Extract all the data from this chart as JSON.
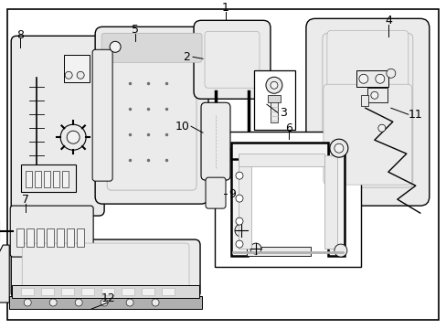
{
  "bg_color": "#ffffff",
  "line_color": "#000000",
  "text_color": "#000000",
  "fig_width": 4.89,
  "fig_height": 3.6,
  "dpi": 100,
  "gray_fill": "#d8d8d8",
  "mid_gray": "#b0b0b0",
  "dark_gray": "#707070",
  "light_gray": "#ebebeb",
  "lighter_gray": "#f2f2f2"
}
